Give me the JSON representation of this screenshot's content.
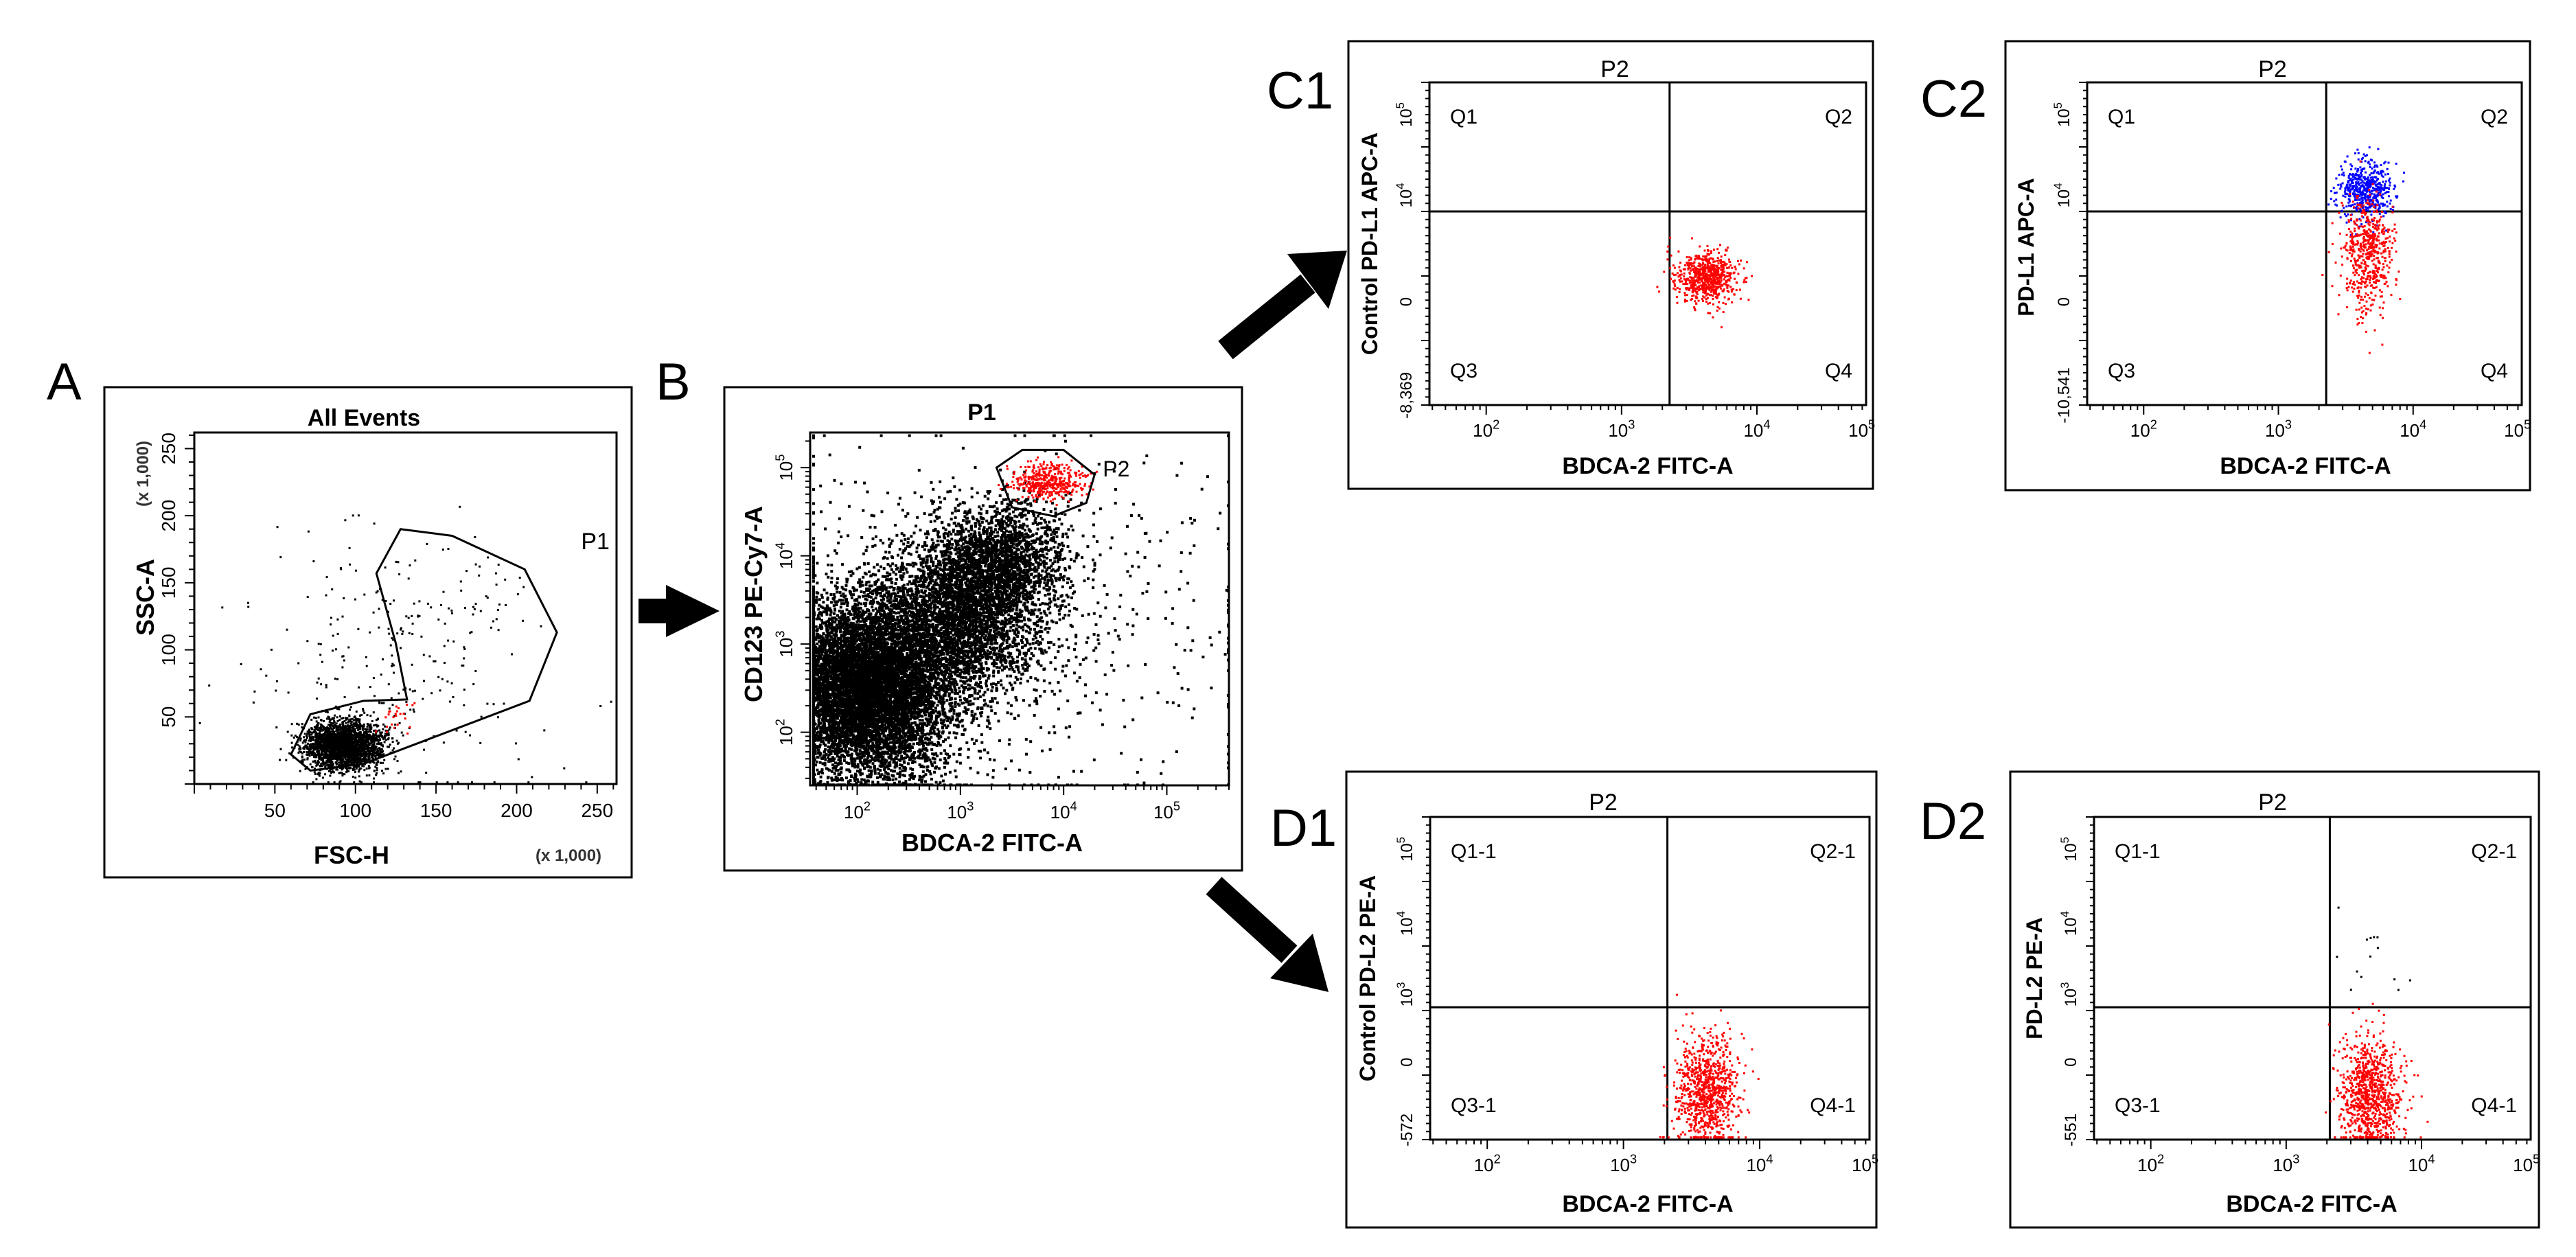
{
  "panel_labels": [
    "A",
    "B",
    "C1",
    "C2",
    "D1",
    "D2"
  ],
  "colors": {
    "black": "#000000",
    "red": "#ff0000",
    "blue": "#0000ff",
    "frame": "#000000",
    "background": "#ffffff"
  },
  "chart_data": [
    {
      "id": "A",
      "type": "scatter",
      "title": "All Events",
      "xlabel": "FSC-H",
      "ylabel": "SSC-A",
      "x_multiplier_label": "(x 1,000)",
      "y_multiplier_label": "(x 1,000)",
      "xlim": [
        0,
        262
      ],
      "ylim": [
        0,
        262
      ],
      "x_ticks": [
        "50",
        "100",
        "150",
        "200",
        "250"
      ],
      "y_ticks": [
        "50",
        "100",
        "150",
        "200",
        "250"
      ],
      "gates": [
        {
          "name": "P1",
          "polygon": [
            [
              60,
              22
            ],
            [
              72,
              52
            ],
            [
              105,
              62
            ],
            [
              132,
              63
            ],
            [
              125,
              105
            ],
            [
              113,
              157
            ],
            [
              128,
              190
            ],
            [
              160,
              185
            ],
            [
              205,
              160
            ],
            [
              225,
              113
            ],
            [
              208,
              62
            ],
            [
              105,
              15
            ],
            [
              72,
              10
            ]
          ]
        }
      ],
      "populations": [
        {
          "color": "black",
          "description": "main cluster",
          "center": [
            92,
            30
          ],
          "spread": [
            12,
            9
          ],
          "count": 2600
        },
        {
          "color": "black",
          "description": "scatter",
          "center": [
            130,
            90
          ],
          "spread": [
            45,
            50
          ],
          "count": 280
        },
        {
          "color": "red",
          "description": "gated",
          "center": [
            125,
            50
          ],
          "spread": [
            8,
            8
          ],
          "count": 25
        }
      ]
    },
    {
      "id": "B",
      "type": "scatter",
      "title": "P1",
      "xlabel": "BDCA-2 FITC-A",
      "ylabel": "CD123 PE-Cy7-A",
      "x_scale": "log",
      "y_scale": "log",
      "xlim": [
        35,
        400000
      ],
      "ylim": [
        25,
        250000
      ],
      "x_ticks": [
        {
          "value": 100,
          "label": "10^2"
        },
        {
          "value": 1000,
          "label": "10^3"
        },
        {
          "value": 10000,
          "label": "10^4"
        },
        {
          "value": 100000,
          "label": "10^5"
        }
      ],
      "y_ticks": [
        {
          "value": 100,
          "label": "10^2"
        },
        {
          "value": 1000,
          "label": "10^3"
        },
        {
          "value": 10000,
          "label": "10^4"
        },
        {
          "value": 100000,
          "label": "10^5"
        }
      ],
      "gates": [
        {
          "name": "P2",
          "polygon_log": [
            [
              3.35,
              5.0
            ],
            [
              3.6,
              5.2
            ],
            [
              4.0,
              5.2
            ],
            [
              4.3,
              4.92
            ],
            [
              4.22,
              4.6
            ],
            [
              3.9,
              4.45
            ],
            [
              3.5,
              4.55
            ]
          ]
        }
      ],
      "populations": [
        {
          "color": "black",
          "description": "dense core",
          "center_log": [
            2.05,
            2.5
          ],
          "spread_log": [
            0.42,
            0.5
          ],
          "count": 9000
        },
        {
          "color": "black",
          "description": "diagonal stream",
          "center_log": [
            3.0,
            3.35
          ],
          "spread_log": [
            0.4,
            0.45
          ],
          "count": 3500
        },
        {
          "color": "black",
          "description": "upper stream",
          "center_log": [
            3.4,
            4.0
          ],
          "spread_log": [
            0.3,
            0.3
          ],
          "count": 1500
        },
        {
          "color": "black",
          "description": "background",
          "center_log": [
            3.3,
            3.2
          ],
          "spread_log": [
            1.4,
            1.1
          ],
          "count": 700
        },
        {
          "color": "red",
          "description": "P2 population",
          "center_log": [
            3.85,
            4.85
          ],
          "spread_log": [
            0.17,
            0.1
          ],
          "count": 450
        }
      ]
    },
    {
      "id": "C1",
      "type": "scatter",
      "title": "P2",
      "xlabel": "BDCA-2 FITC-A",
      "ylabel": "Control PD-L1 APC-A",
      "x_scale": "log",
      "y_scale": "biexponential",
      "x_ticks": [
        "10^2",
        "10^3",
        "10^4",
        "10^5"
      ],
      "y_ticks": [
        "-8,369",
        "0",
        "10^4",
        "10^5"
      ],
      "quadrants": [
        "Q1",
        "Q2",
        "Q3",
        "Q4"
      ],
      "quadrant_split_fraction": [
        0.55,
        0.4
      ],
      "populations": [
        {
          "color": "red",
          "center_fraction": [
            0.635,
            0.6
          ],
          "spread_fraction": [
            0.035,
            0.04
          ],
          "count": 700
        }
      ]
    },
    {
      "id": "C2",
      "type": "scatter",
      "title": "P2",
      "xlabel": "BDCA-2 FITC-A",
      "ylabel": "PD-L1 APC-A",
      "x_scale": "log",
      "y_scale": "biexponential",
      "x_ticks": [
        "10^2",
        "10^3",
        "10^4",
        "10^5"
      ],
      "y_ticks": [
        "-10,541",
        "0",
        "10^4",
        "10^5"
      ],
      "quadrants": [
        "Q1",
        "Q2",
        "Q3",
        "Q4"
      ],
      "quadrant_split_fraction": [
        0.55,
        0.4
      ],
      "populations": [
        {
          "color": "blue",
          "description": "PD-L1 positive",
          "center_fraction": [
            0.64,
            0.33
          ],
          "spread_fraction": [
            0.03,
            0.045
          ],
          "count": 520
        },
        {
          "color": "red",
          "description": "PD-L1 negative",
          "center_fraction": [
            0.64,
            0.53
          ],
          "spread_fraction": [
            0.03,
            0.09
          ],
          "count": 560
        }
      ]
    },
    {
      "id": "D1",
      "type": "scatter",
      "title": "P2",
      "xlabel": "BDCA-2 FITC-A",
      "ylabel": "Control PD-L2 PE-A",
      "x_scale": "log",
      "y_scale": "biexponential",
      "x_ticks": [
        "10^2",
        "10^3",
        "10^4",
        "10^5"
      ],
      "y_ticks": [
        "-572",
        "0",
        "10^3",
        "10^4",
        "10^5"
      ],
      "quadrants": [
        "Q1-1",
        "Q2-1",
        "Q3-1",
        "Q4-1"
      ],
      "quadrant_split_fraction": [
        0.54,
        0.59
      ],
      "populations": [
        {
          "color": "red",
          "center_fraction": [
            0.63,
            0.85
          ],
          "spread_fraction": [
            0.035,
            0.09
          ],
          "count": 900
        }
      ]
    },
    {
      "id": "D2",
      "type": "scatter",
      "title": "P2",
      "xlabel": "BDCA-2 FITC-A",
      "ylabel": "PD-L2 PE-A",
      "x_scale": "log",
      "y_scale": "biexponential",
      "x_ticks": [
        "10^2",
        "10^3",
        "10^4",
        "10^5"
      ],
      "y_ticks": [
        "-551",
        "0",
        "10^3",
        "10^4",
        "10^5"
      ],
      "quadrants": [
        "Q1-1",
        "Q2-1",
        "Q3-1",
        "Q4-1"
      ],
      "quadrant_split_fraction": [
        0.54,
        0.59
      ],
      "populations": [
        {
          "color": "red",
          "center_fraction": [
            0.63,
            0.85
          ],
          "spread_fraction": [
            0.035,
            0.09
          ],
          "count": 900
        },
        {
          "color": "black",
          "center_fraction": [
            0.64,
            0.45
          ],
          "spread_fraction": [
            0.04,
            0.06
          ],
          "count": 14
        }
      ]
    }
  ]
}
